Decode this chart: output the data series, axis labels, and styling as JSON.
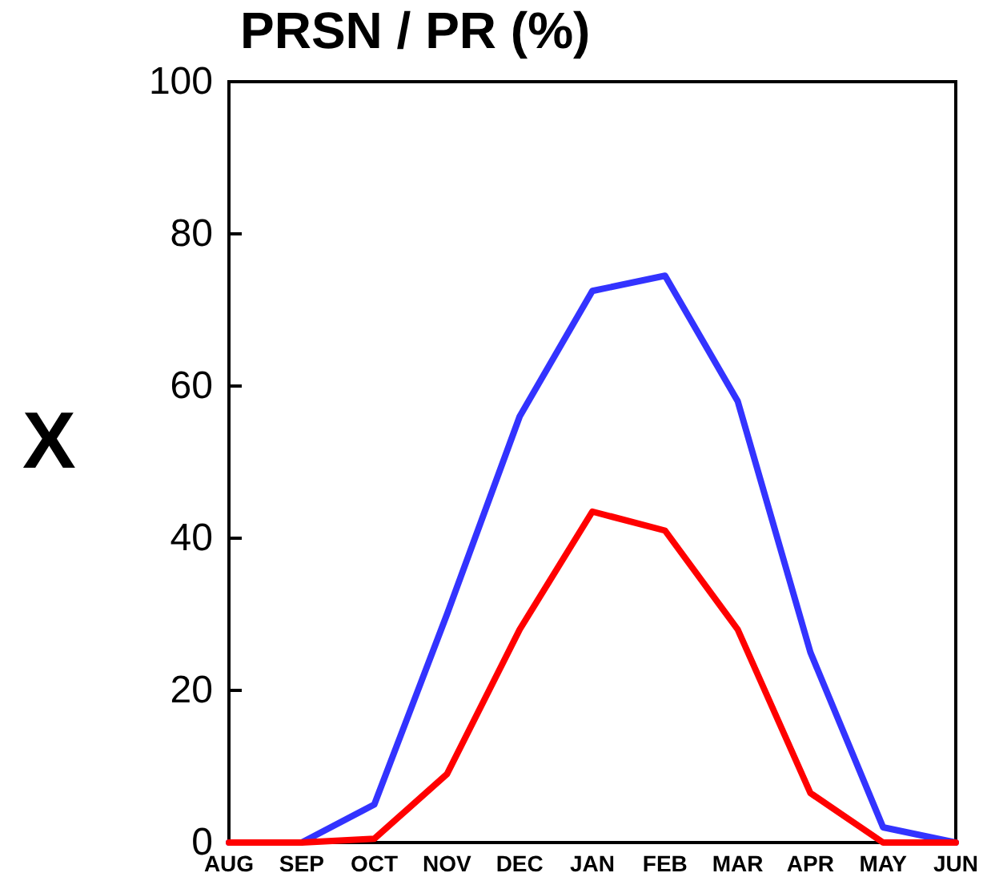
{
  "chart_data": {
    "type": "line",
    "title": "PRSN / PR (%)",
    "annotations": [
      "X"
    ],
    "categories": [
      "AUG",
      "SEP",
      "OCT",
      "NOV",
      "DEC",
      "JAN",
      "FEB",
      "MAR",
      "APR",
      "MAY",
      "JUN"
    ],
    "series": [
      {
        "color": "#3333ff",
        "values": [
          0,
          0,
          5,
          30,
          56,
          72.5,
          74.5,
          58,
          25,
          2,
          0
        ]
      },
      {
        "color": "#ff0000",
        "values": [
          0,
          0,
          0.5,
          9,
          28,
          43.5,
          41,
          28,
          6.5,
          0,
          0
        ]
      }
    ],
    "ylim": [
      0,
      100
    ],
    "yticks": [
      0,
      20,
      40,
      60,
      80,
      100
    ],
    "grid": false,
    "marker": "none",
    "line_style": "solid"
  }
}
